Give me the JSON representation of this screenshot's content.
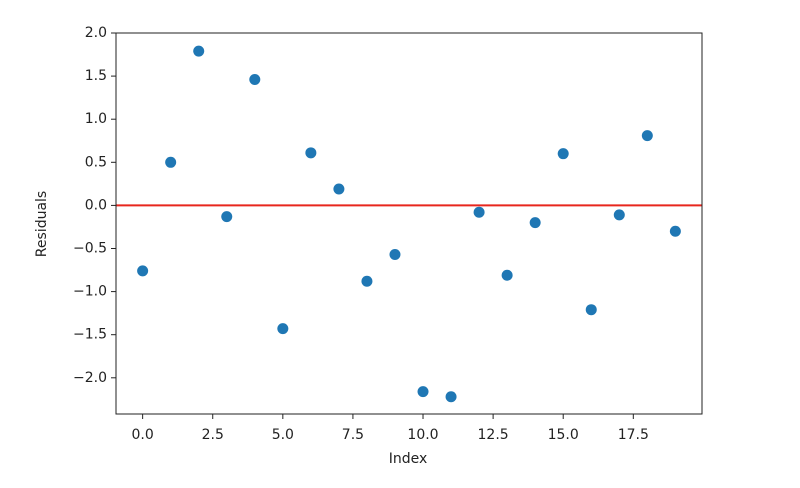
{
  "chart_data": {
    "type": "scatter",
    "xlabel": "Index",
    "ylabel": "Residuals",
    "x": [
      0,
      1,
      2,
      3,
      4,
      5,
      6,
      7,
      8,
      9,
      10,
      11,
      12,
      13,
      14,
      15,
      16,
      17,
      18,
      19
    ],
    "series": [
      {
        "color": "#1f77b4",
        "values": [
          -0.76,
          0.5,
          1.79,
          -0.13,
          1.46,
          -1.43,
          0.61,
          0.19,
          -0.88,
          -0.57,
          -2.16,
          -2.22,
          -0.08,
          -0.81,
          -0.2,
          0.6,
          -1.21,
          -0.11,
          0.81,
          -0.3
        ]
      }
    ],
    "reference_line": {
      "value": 0,
      "color": "#e8261d"
    },
    "xlim": [
      -0.95,
      19.95
    ],
    "xticks": [
      {
        "value": 0,
        "label": "0.0"
      },
      2.5,
      {
        "value": 5,
        "label": "5.0"
      },
      7.5,
      {
        "value": 10,
        "label": "10.0"
      },
      12.5,
      {
        "value": 15,
        "label": "15.0"
      },
      17.5
    ],
    "ylim": [
      -2.42,
      2.0
    ],
    "yticks": [
      {
        "value": -2,
        "label": "−2.0"
      },
      {
        "value": -1.5,
        "label": "−1.5"
      },
      {
        "value": -1,
        "label": "−1.0"
      },
      {
        "value": -0.5,
        "label": "−0.5"
      },
      {
        "value": 0,
        "label": "0.0"
      },
      0.5,
      {
        "value": 1,
        "label": "1.0"
      },
      1.5,
      {
        "value": 2,
        "label": "2.0"
      }
    ]
  }
}
